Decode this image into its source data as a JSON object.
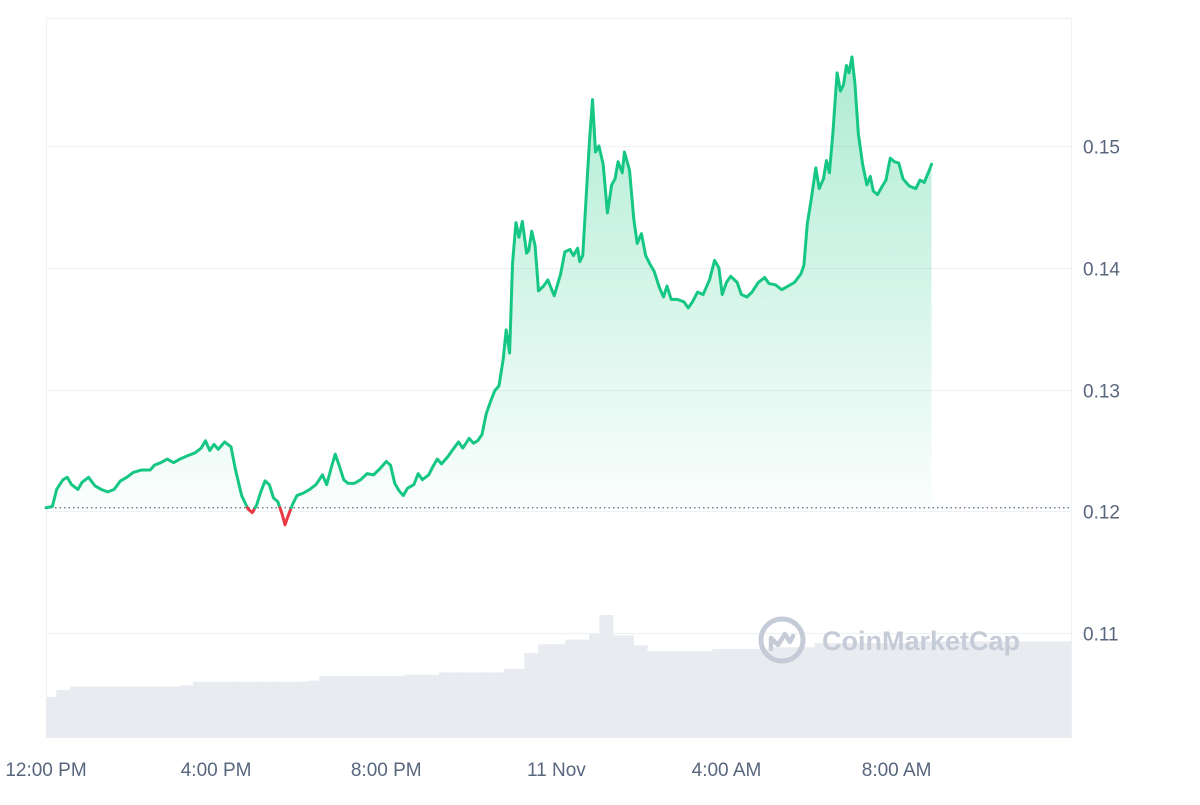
{
  "watermark": {
    "text": "CoinMarketCap",
    "icon": "coinmarketcap-logo-icon"
  },
  "colors": {
    "up": "#16c784",
    "down": "#ea3943",
    "up_fill_top": "#16c784",
    "grid": "#eff2f5",
    "volume": "#e8ebef",
    "baseline": "#58667e"
  },
  "chart_data": {
    "type": "area",
    "title": "",
    "xlabel": "",
    "ylabel": "",
    "grid": true,
    "y_axis_position": "right",
    "ylim": [
      0.1014,
      0.1605
    ],
    "baseline": 0.1203,
    "y_ticks": [
      "0.11",
      "0.12",
      "0.13",
      "0.14",
      "0.15"
    ],
    "y_tick_values": [
      0.11,
      0.12,
      0.13,
      0.14,
      0.15
    ],
    "x_ticks": [
      "12:00 PM",
      "4:00 PM",
      "8:00 PM",
      "11 Nov",
      "4:00 AM",
      "8:00 AM"
    ],
    "x_tick_hours": [
      0,
      4,
      8,
      12,
      16,
      20
    ],
    "x_range_hours": [
      0,
      24.1
    ],
    "series": [
      {
        "kind": "price",
        "points": [
          [
            0.0,
            0.1203
          ],
          [
            0.15,
            0.1204
          ],
          [
            0.25,
            0.1218
          ],
          [
            0.4,
            0.1226
          ],
          [
            0.5,
            0.1228
          ],
          [
            0.6,
            0.1222
          ],
          [
            0.75,
            0.1218
          ],
          [
            0.85,
            0.1224
          ],
          [
            1.0,
            0.1228
          ],
          [
            1.15,
            0.1221
          ],
          [
            1.3,
            0.1218
          ],
          [
            1.45,
            0.1216
          ],
          [
            1.6,
            0.1218
          ],
          [
            1.75,
            0.1225
          ],
          [
            1.9,
            0.1228
          ],
          [
            2.05,
            0.1232
          ],
          [
            2.25,
            0.1234
          ],
          [
            2.45,
            0.1234
          ],
          [
            2.55,
            0.1238
          ],
          [
            2.7,
            0.124
          ],
          [
            2.85,
            0.1243
          ],
          [
            3.0,
            0.124
          ],
          [
            3.15,
            0.1243
          ],
          [
            3.35,
            0.1246
          ],
          [
            3.5,
            0.1248
          ],
          [
            3.65,
            0.1252
          ],
          [
            3.75,
            0.1258
          ],
          [
            3.85,
            0.125
          ],
          [
            3.95,
            0.1255
          ],
          [
            4.05,
            0.1251
          ],
          [
            4.2,
            0.1257
          ],
          [
            4.35,
            0.1253
          ],
          [
            4.45,
            0.1235
          ],
          [
            4.6,
            0.1213
          ],
          [
            4.75,
            0.1202
          ],
          [
            4.85,
            0.1199
          ],
          [
            4.95,
            0.1205
          ],
          [
            5.05,
            0.1216
          ],
          [
            5.15,
            0.1225
          ],
          [
            5.25,
            0.1222
          ],
          [
            5.35,
            0.1211
          ],
          [
            5.45,
            0.1208
          ],
          [
            5.55,
            0.1198
          ],
          [
            5.62,
            0.1189
          ],
          [
            5.7,
            0.1197
          ],
          [
            5.8,
            0.1206
          ],
          [
            5.9,
            0.1213
          ],
          [
            6.05,
            0.1215
          ],
          [
            6.2,
            0.1218
          ],
          [
            6.35,
            0.1222
          ],
          [
            6.5,
            0.123
          ],
          [
            6.6,
            0.1222
          ],
          [
            6.7,
            0.1235
          ],
          [
            6.8,
            0.1247
          ],
          [
            6.9,
            0.1237
          ],
          [
            7.0,
            0.1226
          ],
          [
            7.1,
            0.1223
          ],
          [
            7.25,
            0.1223
          ],
          [
            7.4,
            0.1226
          ],
          [
            7.55,
            0.1231
          ],
          [
            7.7,
            0.123
          ],
          [
            7.85,
            0.1235
          ],
          [
            8.0,
            0.1241
          ],
          [
            8.1,
            0.1238
          ],
          [
            8.2,
            0.1223
          ],
          [
            8.3,
            0.1217
          ],
          [
            8.4,
            0.1213
          ],
          [
            8.5,
            0.1219
          ],
          [
            8.65,
            0.1222
          ],
          [
            8.75,
            0.1231
          ],
          [
            8.85,
            0.1226
          ],
          [
            9.0,
            0.123
          ],
          [
            9.1,
            0.1237
          ],
          [
            9.2,
            0.1243
          ],
          [
            9.3,
            0.1239
          ],
          [
            9.45,
            0.1245
          ],
          [
            9.55,
            0.125
          ],
          [
            9.7,
            0.1257
          ],
          [
            9.8,
            0.1252
          ],
          [
            9.95,
            0.126
          ],
          [
            10.05,
            0.1256
          ],
          [
            10.15,
            0.1258
          ],
          [
            10.25,
            0.1263
          ],
          [
            10.35,
            0.128
          ],
          [
            10.45,
            0.129
          ],
          [
            10.55,
            0.1299
          ],
          [
            10.65,
            0.1303
          ],
          [
            10.75,
            0.1325
          ],
          [
            10.82,
            0.1349
          ],
          [
            10.9,
            0.133
          ],
          [
            10.97,
            0.1404
          ],
          [
            11.05,
            0.1437
          ],
          [
            11.12,
            0.1425
          ],
          [
            11.2,
            0.1438
          ],
          [
            11.3,
            0.1412
          ],
          [
            11.35,
            0.1414
          ],
          [
            11.42,
            0.143
          ],
          [
            11.5,
            0.1418
          ],
          [
            11.58,
            0.1381
          ],
          [
            11.7,
            0.1385
          ],
          [
            11.8,
            0.139
          ],
          [
            11.95,
            0.1377
          ],
          [
            12.1,
            0.1395
          ],
          [
            12.2,
            0.1413
          ],
          [
            12.32,
            0.1415
          ],
          [
            12.4,
            0.141
          ],
          [
            12.5,
            0.1416
          ],
          [
            12.55,
            0.1405
          ],
          [
            12.62,
            0.141
          ],
          [
            12.72,
            0.147
          ],
          [
            12.78,
            0.1505
          ],
          [
            12.85,
            0.1538
          ],
          [
            12.92,
            0.1495
          ],
          [
            13.0,
            0.15
          ],
          [
            13.1,
            0.1485
          ],
          [
            13.2,
            0.1445
          ],
          [
            13.3,
            0.1468
          ],
          [
            13.38,
            0.1473
          ],
          [
            13.45,
            0.1487
          ],
          [
            13.55,
            0.1478
          ],
          [
            13.6,
            0.1495
          ],
          [
            13.72,
            0.148
          ],
          [
            13.82,
            0.144
          ],
          [
            13.9,
            0.142
          ],
          [
            14.0,
            0.1428
          ],
          [
            14.1,
            0.141
          ],
          [
            14.2,
            0.1403
          ],
          [
            14.3,
            0.1397
          ],
          [
            14.42,
            0.1384
          ],
          [
            14.52,
            0.1376
          ],
          [
            14.6,
            0.1385
          ],
          [
            14.7,
            0.1374
          ],
          [
            14.85,
            0.1374
          ],
          [
            15.0,
            0.1372
          ],
          [
            15.1,
            0.1367
          ],
          [
            15.2,
            0.1372
          ],
          [
            15.32,
            0.138
          ],
          [
            15.45,
            0.1378
          ],
          [
            15.6,
            0.139
          ],
          [
            15.72,
            0.1406
          ],
          [
            15.82,
            0.14
          ],
          [
            15.9,
            0.1378
          ],
          [
            16.0,
            0.1388
          ],
          [
            16.1,
            0.1393
          ],
          [
            16.25,
            0.1388
          ],
          [
            16.35,
            0.1378
          ],
          [
            16.48,
            0.1376
          ],
          [
            16.6,
            0.138
          ],
          [
            16.75,
            0.1388
          ],
          [
            16.9,
            0.1392
          ],
          [
            17.0,
            0.1387
          ],
          [
            17.15,
            0.1386
          ],
          [
            17.3,
            0.1382
          ],
          [
            17.45,
            0.1385
          ],
          [
            17.6,
            0.1388
          ],
          [
            17.75,
            0.1395
          ],
          [
            17.82,
            0.1402
          ],
          [
            17.9,
            0.1436
          ],
          [
            18.0,
            0.1458
          ],
          [
            18.1,
            0.1482
          ],
          [
            18.18,
            0.1465
          ],
          [
            18.28,
            0.1473
          ],
          [
            18.35,
            0.1488
          ],
          [
            18.42,
            0.1478
          ],
          [
            18.5,
            0.151
          ],
          [
            18.6,
            0.156
          ],
          [
            18.68,
            0.1545
          ],
          [
            18.75,
            0.155
          ],
          [
            18.82,
            0.1566
          ],
          [
            18.88,
            0.156
          ],
          [
            18.95,
            0.1573
          ],
          [
            19.02,
            0.1551
          ],
          [
            19.1,
            0.151
          ],
          [
            19.2,
            0.1485
          ],
          [
            19.3,
            0.1468
          ],
          [
            19.38,
            0.1475
          ],
          [
            19.45,
            0.1463
          ],
          [
            19.55,
            0.146
          ],
          [
            19.68,
            0.1468
          ],
          [
            19.75,
            0.1472
          ],
          [
            19.85,
            0.149
          ],
          [
            19.95,
            0.1487
          ],
          [
            20.05,
            0.1486
          ],
          [
            20.15,
            0.1473
          ],
          [
            20.3,
            0.1467
          ],
          [
            20.45,
            0.1465
          ],
          [
            20.55,
            0.1472
          ],
          [
            20.65,
            0.147
          ],
          [
            20.78,
            0.1481
          ],
          [
            20.82,
            0.1485
          ]
        ]
      },
      {
        "kind": "volume",
        "steps": [
          [
            0.0,
            0.07
          ],
          [
            0.25,
            0.082
          ],
          [
            0.6,
            0.088
          ],
          [
            3.1,
            0.09
          ],
          [
            3.45,
            0.096
          ],
          [
            6.15,
            0.098
          ],
          [
            6.45,
            0.106
          ],
          [
            8.45,
            0.108
          ],
          [
            9.2,
            0.112
          ],
          [
            10.8,
            0.118
          ],
          [
            11.25,
            0.145
          ],
          [
            11.6,
            0.16
          ],
          [
            12.2,
            0.168
          ],
          [
            12.8,
            0.178
          ],
          [
            12.98,
            0.21
          ],
          [
            13.3,
            0.175
          ],
          [
            13.8,
            0.158
          ],
          [
            14.1,
            0.148
          ],
          [
            15.7,
            0.152
          ],
          [
            17.05,
            0.155
          ],
          [
            18.1,
            0.162
          ],
          [
            20.3,
            0.165
          ],
          [
            24.1,
            0.165
          ]
        ]
      }
    ]
  }
}
